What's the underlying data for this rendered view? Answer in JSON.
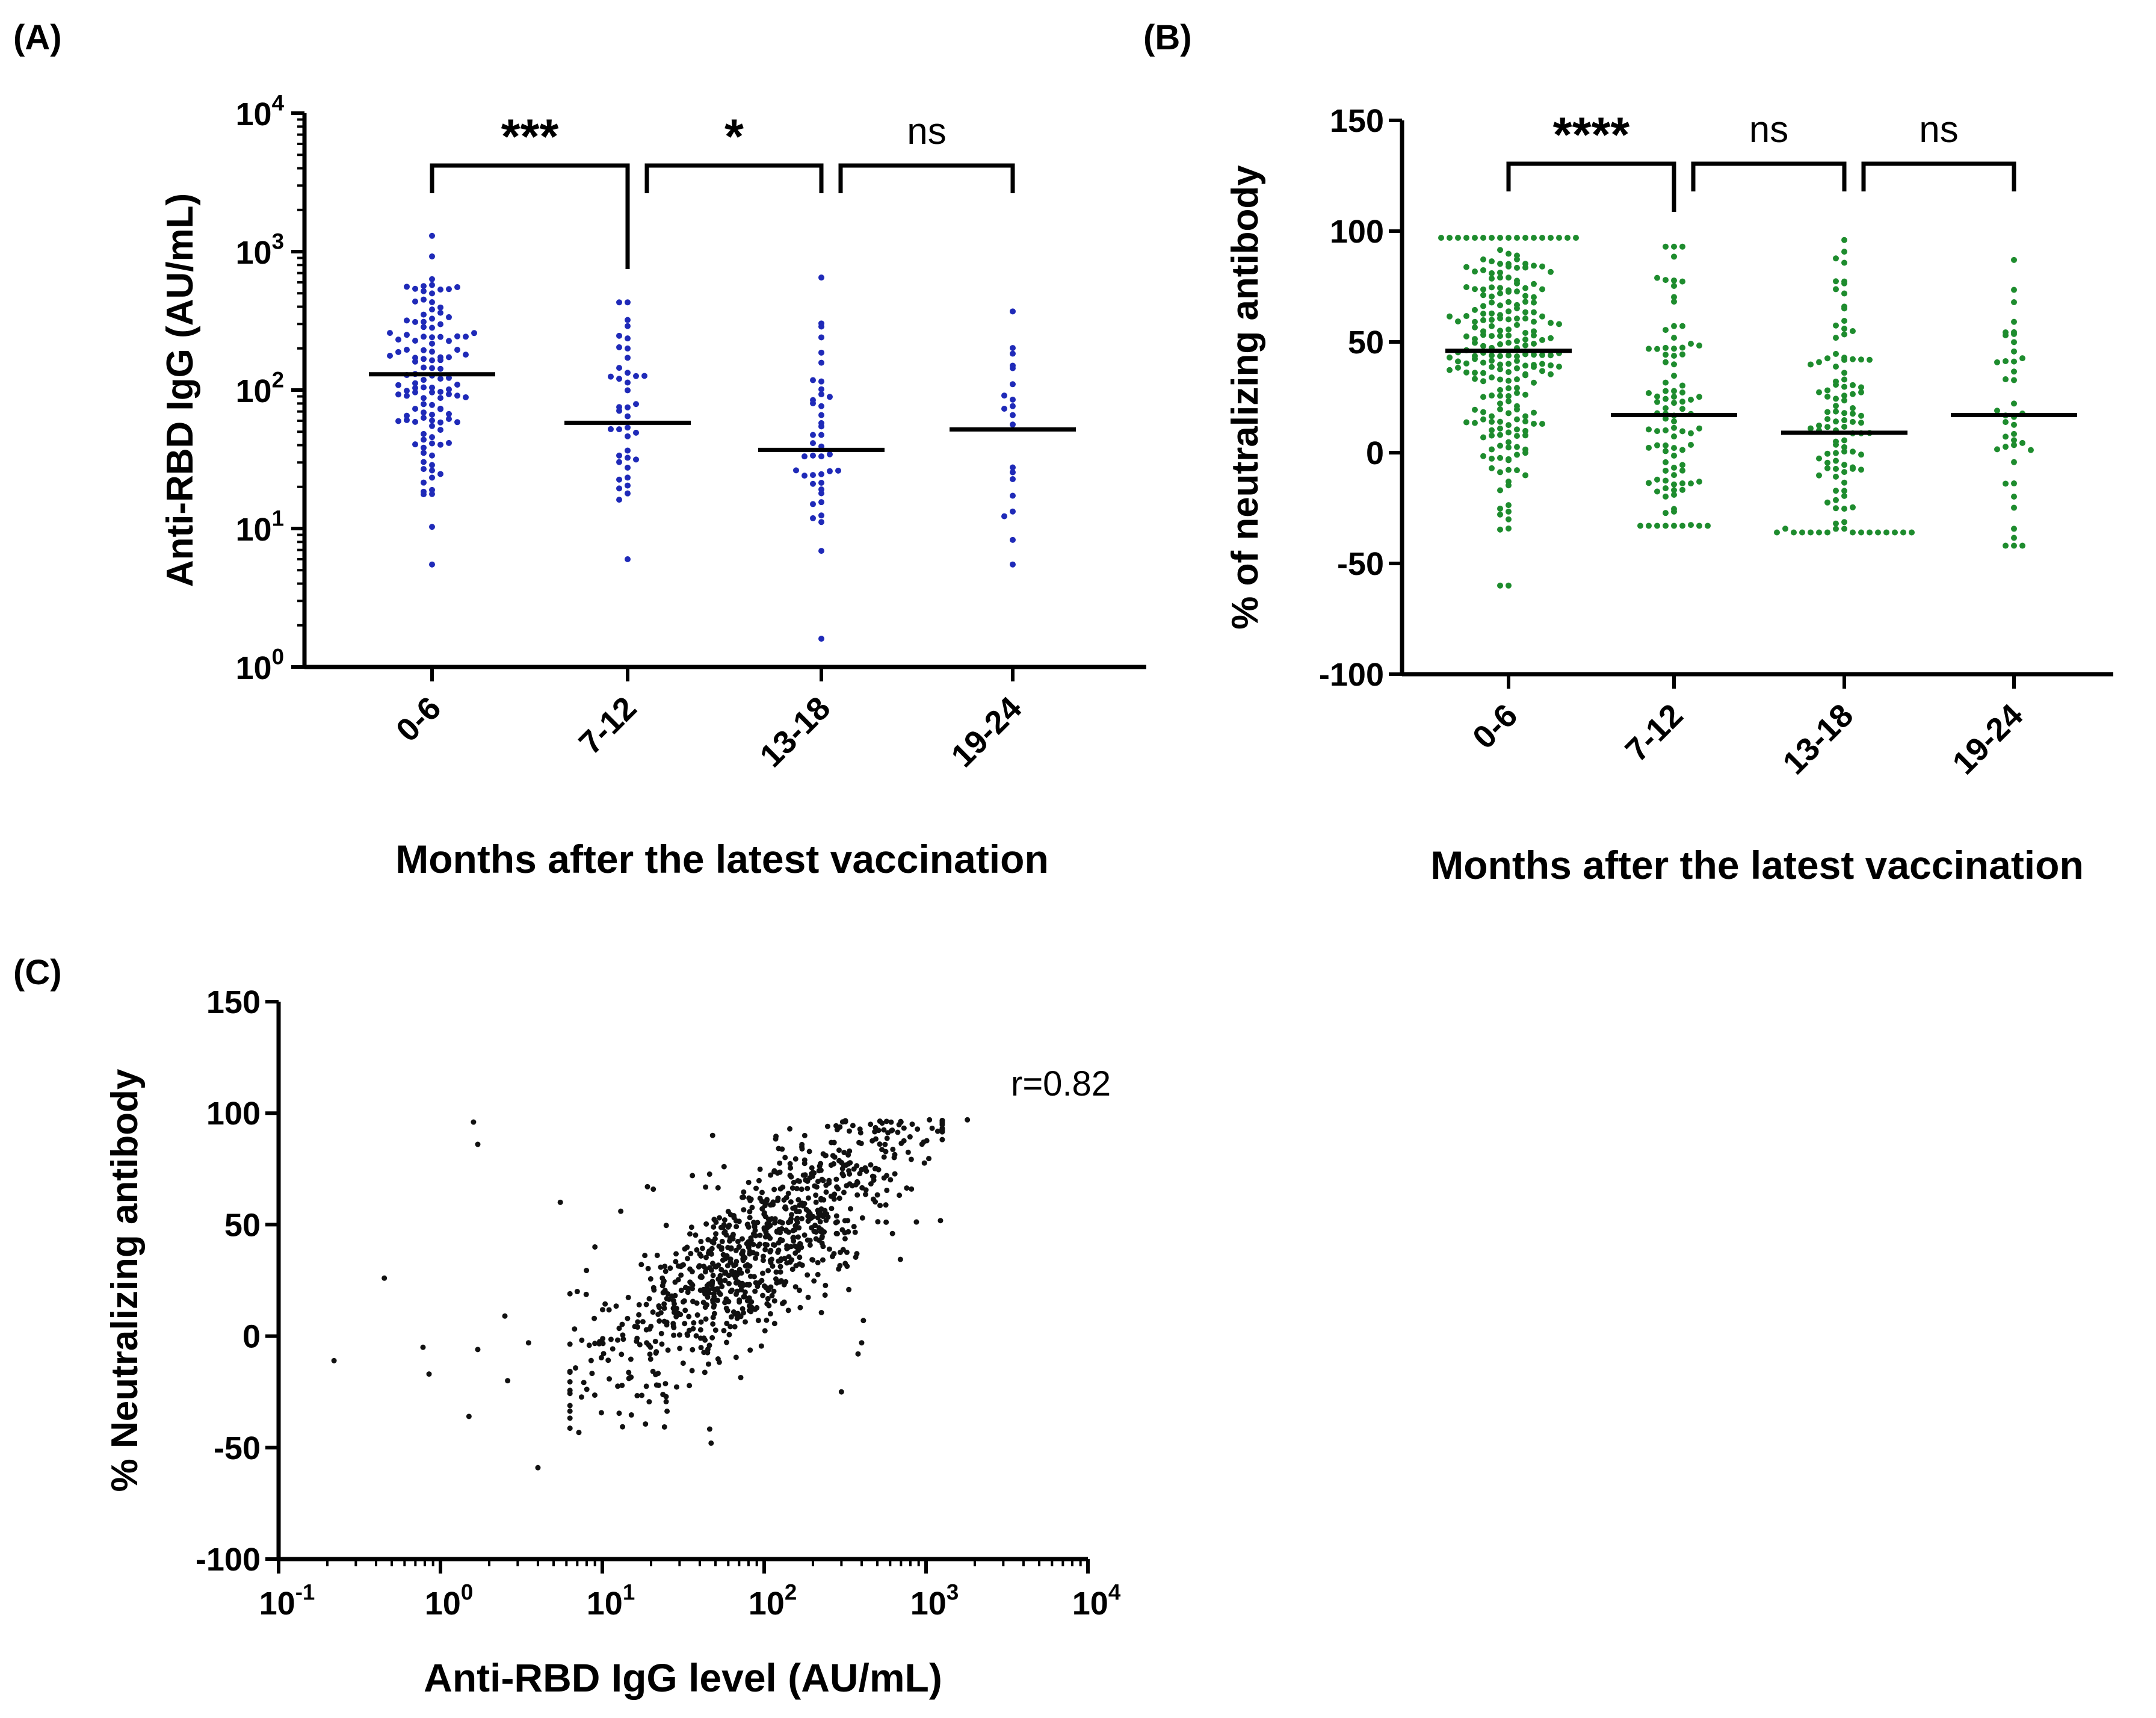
{
  "panel_labels": {
    "a": "(A)",
    "b": "(B)",
    "c": "(C)"
  },
  "colors": {
    "panel_a_points": "#1f2ab8",
    "panel_b_points": "#1e8c2e",
    "panel_c_points": "#111111",
    "axis": "#000000"
  },
  "chart_data": [
    {
      "id": "A",
      "type": "scatter",
      "subtype": "dot-strip (log scale)",
      "ylabel": "Anti-RBD IgG (AU/mL)",
      "xlabel": "Months after the latest vaccination",
      "categories": [
        "0-6",
        "7-12",
        "13-18",
        "19-24"
      ],
      "yscale": "log10",
      "ylim": [
        1,
        10000
      ],
      "yticks": [
        {
          "base": "10",
          "exp": "0"
        },
        {
          "base": "10",
          "exp": "1"
        },
        {
          "base": "10",
          "exp": "2"
        },
        {
          "base": "10",
          "exp": "3"
        },
        {
          "base": "10",
          "exp": "4"
        }
      ],
      "medians": [
        130,
        58,
        37,
        52
      ],
      "group_ranges": [
        [
          5.5,
          1300
        ],
        [
          6,
          430
        ],
        [
          1.6,
          650
        ],
        [
          5.5,
          370
        ]
      ],
      "group_counts": [
        120,
        38,
        40,
        18
      ],
      "significance": [
        {
          "from": 0,
          "to": 1,
          "label": "***"
        },
        {
          "from": 1,
          "to": 2,
          "label": "*"
        },
        {
          "from": 2,
          "to": 3,
          "label": "ns"
        }
      ]
    },
    {
      "id": "B",
      "type": "scatter",
      "subtype": "dot-strip",
      "ylabel": "% of neutralizing antibody",
      "xlabel": "Months after the latest vaccination",
      "categories": [
        "0-6",
        "7-12",
        "13-18",
        "19-24"
      ],
      "ylim": [
        -100,
        150
      ],
      "yticks": [
        "-100",
        "-50",
        "0",
        "50",
        "100",
        "150"
      ],
      "medians": [
        46,
        17,
        9,
        17
      ],
      "group_ranges": [
        [
          -60,
          97
        ],
        [
          -33,
          93
        ],
        [
          -36,
          96
        ],
        [
          -42,
          87
        ]
      ],
      "group_counts": [
        230,
        95,
        110,
        40
      ],
      "significance": [
        {
          "from": 0,
          "to": 1,
          "label": "****"
        },
        {
          "from": 1,
          "to": 2,
          "label": "ns"
        },
        {
          "from": 2,
          "to": 3,
          "label": "ns"
        }
      ]
    },
    {
      "id": "C",
      "type": "scatter",
      "ylabel": "% Neutralizing antibody",
      "xlabel": "Anti-RBD IgG level (AU/mL)",
      "xscale": "log10",
      "xlim": [
        0.1,
        10000
      ],
      "ylim": [
        -100,
        150
      ],
      "xticks": [
        {
          "base": "10",
          "exp": "-1"
        },
        {
          "base": "10",
          "exp": "0"
        },
        {
          "base": "10",
          "exp": "1"
        },
        {
          "base": "10",
          "exp": "2"
        },
        {
          "base": "10",
          "exp": "3"
        },
        {
          "base": "10",
          "exp": "4"
        }
      ],
      "yticks": [
        "-100",
        "-50",
        "0",
        "50",
        "100",
        "150"
      ],
      "annotation": "r=0.82",
      "outliers": [
        [
          0.22,
          -11
        ],
        [
          0.45,
          26
        ],
        [
          0.78,
          -5
        ],
        [
          0.85,
          -17
        ],
        [
          1.5,
          -36
        ],
        [
          1.6,
          96
        ],
        [
          1.7,
          86
        ],
        [
          1.7,
          -6
        ],
        [
          2.5,
          9
        ],
        [
          2.6,
          -20
        ],
        [
          3.5,
          -3
        ],
        [
          4,
          -59
        ],
        [
          5.5,
          60
        ],
        [
          7,
          20
        ],
        [
          9,
          40
        ],
        [
          13,
          56
        ],
        [
          19,
          67
        ],
        [
          36,
          72
        ],
        [
          47,
          -48
        ],
        [
          48,
          90
        ],
        [
          180,
          70
        ],
        [
          300,
          -25
        ],
        [
          380,
          -8
        ],
        [
          400,
          -3
        ],
        [
          410,
          7
        ],
        [
          620,
          46
        ],
        [
          700,
          96
        ],
        [
          1050,
          97
        ],
        [
          1800,
          97
        ]
      ],
      "trend_points": 900
    }
  ]
}
